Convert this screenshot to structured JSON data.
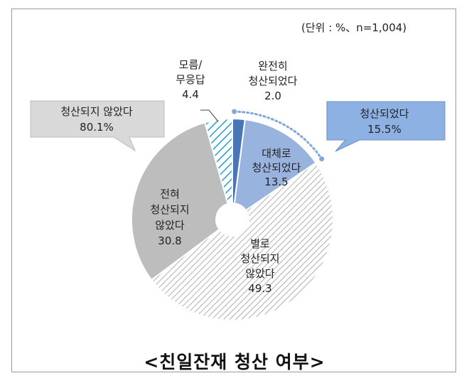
{
  "unit_note": "(단위 : %、n=1,004)",
  "caption": "<친일잔재 청산 여부>",
  "chart_data": {
    "type": "pie",
    "donut": true,
    "slices": [
      {
        "label": "완전히\n청산되었다",
        "value": 2.0,
        "value_text": "2.0",
        "color": "#4a76b8",
        "pattern": "solid"
      },
      {
        "label": "대체로\n청산되었다",
        "value": 13.5,
        "value_text": "13.5",
        "color": "#98b3de",
        "pattern": "solid"
      },
      {
        "label": "별로\n청산되지\n않았다",
        "value": 49.3,
        "value_text": "49.3",
        "color": "#ffffff",
        "pattern": "gray-diagonal"
      },
      {
        "label": "전혀\n청산되지\n않았다",
        "value": 30.8,
        "value_text": "30.8",
        "color": "#bdbdbd",
        "pattern": "solid"
      },
      {
        "label": "모름/\n무응답",
        "value": 4.4,
        "value_text": "4.4",
        "color": "#ffffff",
        "pattern": "blue-diagonal"
      }
    ],
    "callouts": [
      {
        "label": "청산되었다",
        "value_text": "15.5%",
        "fill": "#8eb1e3"
      },
      {
        "label": "청산되지 않았다",
        "value_text": "80.1%",
        "fill": "#d9d9d9"
      }
    ]
  }
}
